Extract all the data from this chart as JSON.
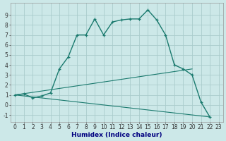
{
  "title": "",
  "xlabel": "Humidex (Indice chaleur)",
  "bg_color": "#cce8e8",
  "grid_color": "#aacccc",
  "line_color": "#1a7a6e",
  "xlim": [
    -0.5,
    23.5
  ],
  "ylim": [
    -1.7,
    10.2
  ],
  "xticks": [
    0,
    1,
    2,
    3,
    4,
    5,
    6,
    7,
    8,
    9,
    10,
    11,
    12,
    13,
    14,
    15,
    16,
    17,
    18,
    19,
    20,
    21,
    22,
    23
  ],
  "yticks": [
    -1,
    0,
    1,
    2,
    3,
    4,
    5,
    6,
    7,
    8,
    9
  ],
  "series1_x": [
    0,
    1,
    2,
    3,
    4,
    5,
    6,
    7,
    8,
    9,
    10,
    11,
    12,
    13,
    14,
    15,
    16,
    17,
    18,
    19,
    20,
    21,
    22
  ],
  "series1_y": [
    1.0,
    1.1,
    0.7,
    0.9,
    1.2,
    3.6,
    4.8,
    7.0,
    7.0,
    8.6,
    7.0,
    8.3,
    8.5,
    8.6,
    8.6,
    9.5,
    8.5,
    7.0,
    4.0,
    3.6,
    3.0,
    0.3,
    -1.2
  ],
  "series2_x": [
    0,
    20
  ],
  "series2_y": [
    1.0,
    3.6
  ],
  "series3_x": [
    0,
    22
  ],
  "series3_y": [
    1.0,
    -1.2
  ],
  "xlabel_color": "#000080",
  "xlabel_fontsize": 6.5,
  "tick_fontsize": 5.5
}
